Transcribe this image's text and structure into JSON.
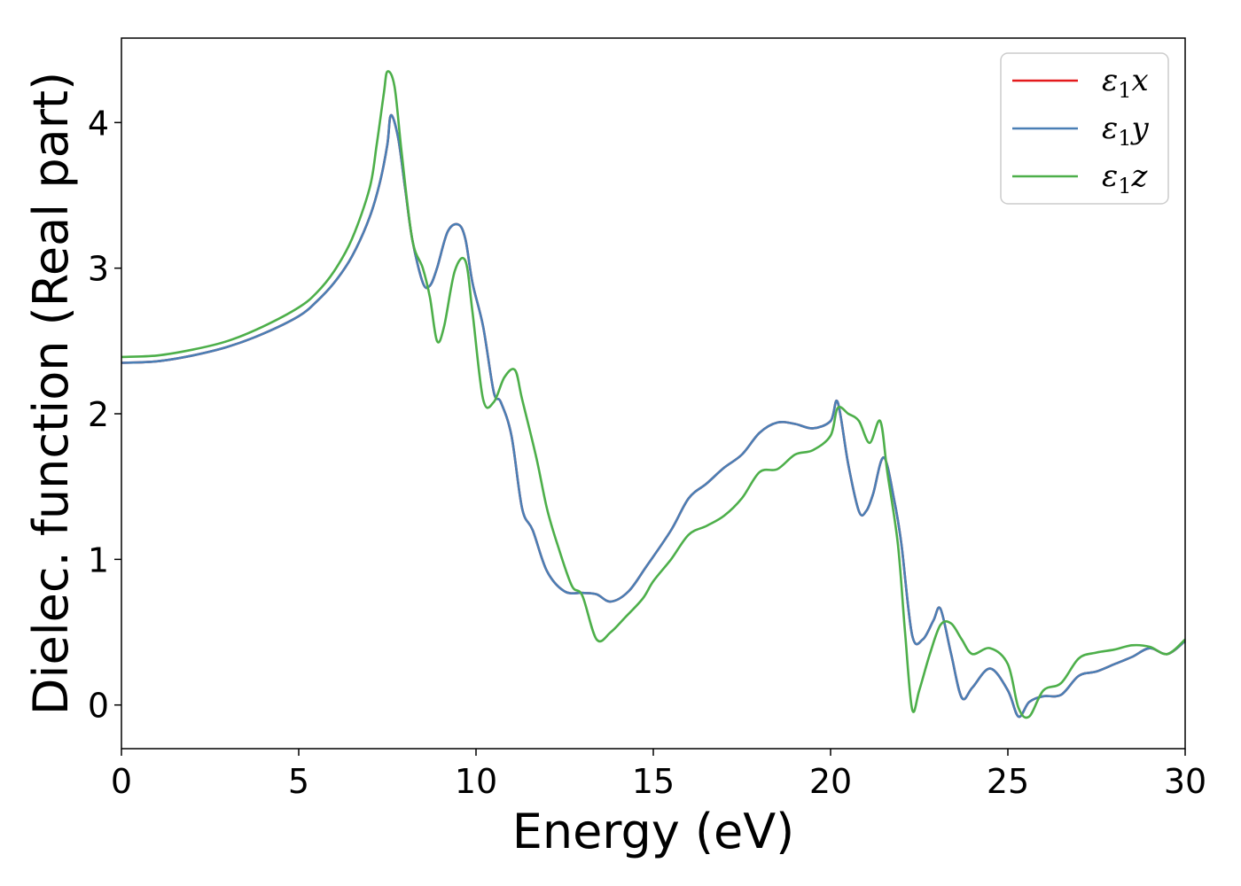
{
  "chart_data": {
    "type": "line",
    "xlabel": "Energy (eV)",
    "ylabel": "Dielec. function (Real part)",
    "xlim": [
      0,
      30
    ],
    "ylim": [
      -0.3,
      4.58
    ],
    "xticks": [
      0,
      5,
      10,
      15,
      20,
      25,
      30
    ],
    "yticks": [
      0,
      1,
      2,
      3,
      4
    ],
    "grid": false,
    "legend_position": "top-right",
    "series": [
      {
        "name": "x",
        "legend_symbol": "ε",
        "legend_subscript": "1",
        "color": "#e41a1c",
        "x": [
          0,
          1,
          2,
          3,
          4,
          5,
          5.5,
          6,
          6.5,
          7,
          7.3,
          7.5,
          7.6,
          7.8,
          8,
          8.2,
          8.5,
          8.7,
          8.9,
          9.2,
          9.5,
          9.7,
          9.9,
          10.2,
          10.5,
          10.7,
          11,
          11.3,
          11.6,
          12,
          12.5,
          13,
          13.4,
          13.8,
          14.3,
          14.8,
          15.5,
          16,
          16.5,
          17,
          17.5,
          18,
          18.5,
          19,
          19.5,
          20,
          20.2,
          20.5,
          20.8,
          21,
          21.2,
          21.5,
          21.8,
          22,
          22.3,
          22.6,
          22.9,
          23.1,
          23.4,
          23.7,
          24,
          24.5,
          25,
          25.3,
          25.6,
          26,
          26.5,
          27,
          27.5,
          28,
          28.5,
          29,
          29.5,
          30
        ],
        "y": [
          2.35,
          2.36,
          2.4,
          2.46,
          2.55,
          2.67,
          2.77,
          2.9,
          3.08,
          3.35,
          3.6,
          3.85,
          4.05,
          3.9,
          3.55,
          3.2,
          2.9,
          2.88,
          3.0,
          3.25,
          3.3,
          3.2,
          2.9,
          2.6,
          2.15,
          2.08,
          1.85,
          1.35,
          1.2,
          0.92,
          0.78,
          0.77,
          0.76,
          0.71,
          0.78,
          0.95,
          1.2,
          1.42,
          1.52,
          1.63,
          1.72,
          1.87,
          1.94,
          1.93,
          1.9,
          1.95,
          2.08,
          1.65,
          1.33,
          1.33,
          1.45,
          1.7,
          1.4,
          1.1,
          0.48,
          0.45,
          0.58,
          0.66,
          0.35,
          0.05,
          0.12,
          0.25,
          0.1,
          -0.08,
          0.02,
          0.06,
          0.07,
          0.2,
          0.23,
          0.28,
          0.33,
          0.39,
          0.35,
          0.44
        ]
      },
      {
        "name": "y",
        "legend_symbol": "ε",
        "legend_subscript": "1",
        "color": "#4a7fb5",
        "x": [
          0,
          1,
          2,
          3,
          4,
          5,
          5.5,
          6,
          6.5,
          7,
          7.3,
          7.5,
          7.6,
          7.8,
          8,
          8.2,
          8.5,
          8.7,
          8.9,
          9.2,
          9.5,
          9.7,
          9.9,
          10.2,
          10.5,
          10.7,
          11,
          11.3,
          11.6,
          12,
          12.5,
          13,
          13.4,
          13.8,
          14.3,
          14.8,
          15.5,
          16,
          16.5,
          17,
          17.5,
          18,
          18.5,
          19,
          19.5,
          20,
          20.2,
          20.5,
          20.8,
          21,
          21.2,
          21.5,
          21.8,
          22,
          22.3,
          22.6,
          22.9,
          23.1,
          23.4,
          23.7,
          24,
          24.5,
          25,
          25.3,
          25.6,
          26,
          26.5,
          27,
          27.5,
          28,
          28.5,
          29,
          29.5,
          30
        ],
        "y": [
          2.35,
          2.36,
          2.4,
          2.46,
          2.55,
          2.67,
          2.77,
          2.9,
          3.08,
          3.35,
          3.6,
          3.85,
          4.05,
          3.9,
          3.55,
          3.2,
          2.9,
          2.88,
          3.0,
          3.25,
          3.3,
          3.2,
          2.9,
          2.6,
          2.15,
          2.08,
          1.85,
          1.35,
          1.2,
          0.92,
          0.78,
          0.77,
          0.76,
          0.71,
          0.78,
          0.95,
          1.2,
          1.42,
          1.52,
          1.63,
          1.72,
          1.87,
          1.94,
          1.93,
          1.9,
          1.95,
          2.08,
          1.65,
          1.33,
          1.33,
          1.45,
          1.7,
          1.4,
          1.1,
          0.48,
          0.45,
          0.58,
          0.66,
          0.35,
          0.05,
          0.12,
          0.25,
          0.1,
          -0.08,
          0.02,
          0.06,
          0.07,
          0.2,
          0.23,
          0.28,
          0.33,
          0.39,
          0.35,
          0.44
        ]
      },
      {
        "name": "z",
        "legend_symbol": "ε",
        "legend_subscript": "1",
        "color": "#4daf4a",
        "x": [
          0,
          1,
          2,
          3,
          4,
          5,
          5.5,
          6,
          6.5,
          7,
          7.2,
          7.4,
          7.5,
          7.7,
          7.9,
          8.2,
          8.5,
          8.7,
          8.9,
          9.1,
          9.4,
          9.7,
          9.9,
          10.2,
          10.5,
          10.8,
          11.1,
          11.3,
          11.7,
          12,
          12.3,
          12.7,
          13,
          13.4,
          13.8,
          14.2,
          14.7,
          15,
          15.5,
          16,
          16.5,
          17,
          17.5,
          18,
          18.5,
          19,
          19.5,
          20,
          20.2,
          20.5,
          20.8,
          21.1,
          21.4,
          21.6,
          21.9,
          22.1,
          22.3,
          22.5,
          22.8,
          23.1,
          23.4,
          23.7,
          24,
          24.5,
          25,
          25.3,
          25.6,
          26,
          26.5,
          27,
          27.5,
          28,
          28.5,
          29,
          29.5,
          30
        ],
        "y": [
          2.39,
          2.4,
          2.44,
          2.5,
          2.6,
          2.73,
          2.83,
          2.98,
          3.2,
          3.55,
          3.85,
          4.2,
          4.35,
          4.25,
          3.8,
          3.2,
          3.0,
          2.8,
          2.5,
          2.6,
          2.98,
          3.05,
          2.7,
          2.1,
          2.08,
          2.25,
          2.3,
          2.1,
          1.7,
          1.35,
          1.1,
          0.82,
          0.75,
          0.45,
          0.5,
          0.6,
          0.73,
          0.85,
          1.0,
          1.17,
          1.23,
          1.3,
          1.42,
          1.6,
          1.62,
          1.72,
          1.75,
          1.85,
          2.04,
          2.0,
          1.95,
          1.8,
          1.95,
          1.6,
          1.1,
          0.5,
          -0.03,
          0.1,
          0.35,
          0.55,
          0.56,
          0.45,
          0.35,
          0.39,
          0.28,
          -0.02,
          -0.08,
          0.1,
          0.15,
          0.32,
          0.36,
          0.38,
          0.41,
          0.4,
          0.35,
          0.45
        ]
      }
    ]
  }
}
